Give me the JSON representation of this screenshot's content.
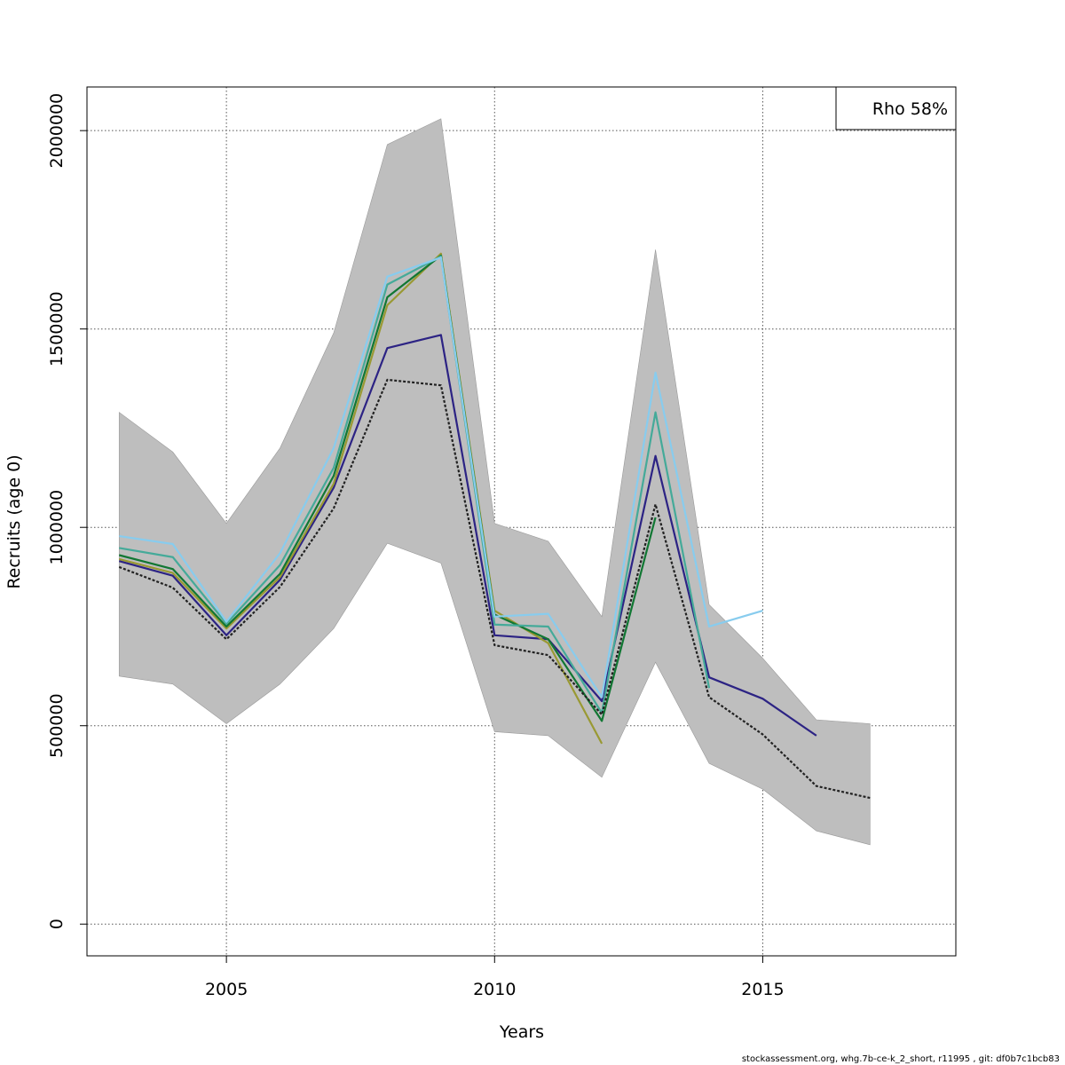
{
  "chart_data": {
    "type": "line",
    "title": "",
    "xlabel": "Years",
    "ylabel": "Recruits (age 0)",
    "xlim": [
      2002.4,
      2018.6
    ],
    "ylim": [
      -80000,
      2110000
    ],
    "x_ticks": [
      2005,
      2010,
      2015
    ],
    "y_ticks": [
      0,
      500000,
      1000000,
      1500000,
      2000000
    ],
    "grid": true,
    "legend": {
      "text": "Rho 58%",
      "placement": "top-right"
    },
    "band": {
      "x": [
        2003,
        2004,
        2005,
        2006,
        2007,
        2008,
        2009,
        2010,
        2011,
        2012,
        2013,
        2014,
        2015,
        2016,
        2017
      ],
      "upper": [
        1290000,
        1190000,
        1010000,
        1200000,
        1490000,
        1965000,
        2030000,
        1010000,
        965000,
        775000,
        1700000,
        805000,
        670000,
        515000,
        505000
      ],
      "lower": [
        625000,
        605000,
        505000,
        605000,
        745000,
        960000,
        910000,
        485000,
        475000,
        370000,
        660000,
        405000,
        340000,
        235000,
        200000
      ],
      "color": "#bebebe"
    },
    "series": [
      {
        "color": "#222222",
        "dashed": true,
        "x": [
          2003,
          2004,
          2005,
          2006,
          2007,
          2008,
          2009,
          2010,
          2011,
          2012,
          2013,
          2014,
          2015,
          2016,
          2017
        ],
        "values": [
          900000,
          848000,
          718000,
          850000,
          1048000,
          1372000,
          1358000,
          703000,
          678000,
          528000,
          1058000,
          572000,
          478000,
          348000,
          318000
        ]
      },
      {
        "color": "#2c2384",
        "dashed": false,
        "x": [
          2003,
          2004,
          2005,
          2006,
          2007,
          2008,
          2009,
          2010,
          2011,
          2012,
          2013,
          2014,
          2015,
          2016
        ],
        "values": [
          915000,
          878000,
          728000,
          868000,
          1100000,
          1452000,
          1485000,
          728000,
          718000,
          562000,
          1180000,
          622000,
          568000,
          475000
        ]
      },
      {
        "color": "#999933",
        "dashed": false,
        "x": [
          2003,
          2004,
          2005,
          2006,
          2007,
          2008,
          2009,
          2010,
          2011,
          2012
        ],
        "values": [
          920000,
          885000,
          745000,
          875000,
          1110000,
          1560000,
          1690000,
          790000,
          708000,
          455000
        ]
      },
      {
        "color": "#117733",
        "dashed": false,
        "x": [
          2003,
          2004,
          2005,
          2006,
          2007,
          2008,
          2009,
          2010,
          2011,
          2012,
          2013
        ],
        "values": [
          930000,
          895000,
          750000,
          883000,
          1130000,
          1580000,
          1685000,
          780000,
          718000,
          512000,
          1025000
        ]
      },
      {
        "color": "#44aa99",
        "dashed": false,
        "x": [
          2003,
          2004,
          2005,
          2006,
          2007,
          2008,
          2009,
          2010,
          2011,
          2012,
          2013,
          2014
        ],
        "values": [
          948000,
          925000,
          757000,
          905000,
          1150000,
          1612000,
          1683000,
          755000,
          750000,
          532000,
          1290000,
          595000
        ]
      },
      {
        "color": "#88ccee",
        "dashed": false,
        "x": [
          2003,
          2004,
          2005,
          2006,
          2007,
          2008,
          2009,
          2010,
          2011,
          2012,
          2013,
          2014,
          2015
        ],
        "values": [
          978000,
          958000,
          762000,
          935000,
          1200000,
          1632000,
          1680000,
          775000,
          782000,
          572000,
          1390000,
          750000,
          790000
        ]
      }
    ]
  },
  "footer": "stockassessment.org, whg.7b-ce-k_2_short, r11995 , git: df0b7c1bcb83"
}
